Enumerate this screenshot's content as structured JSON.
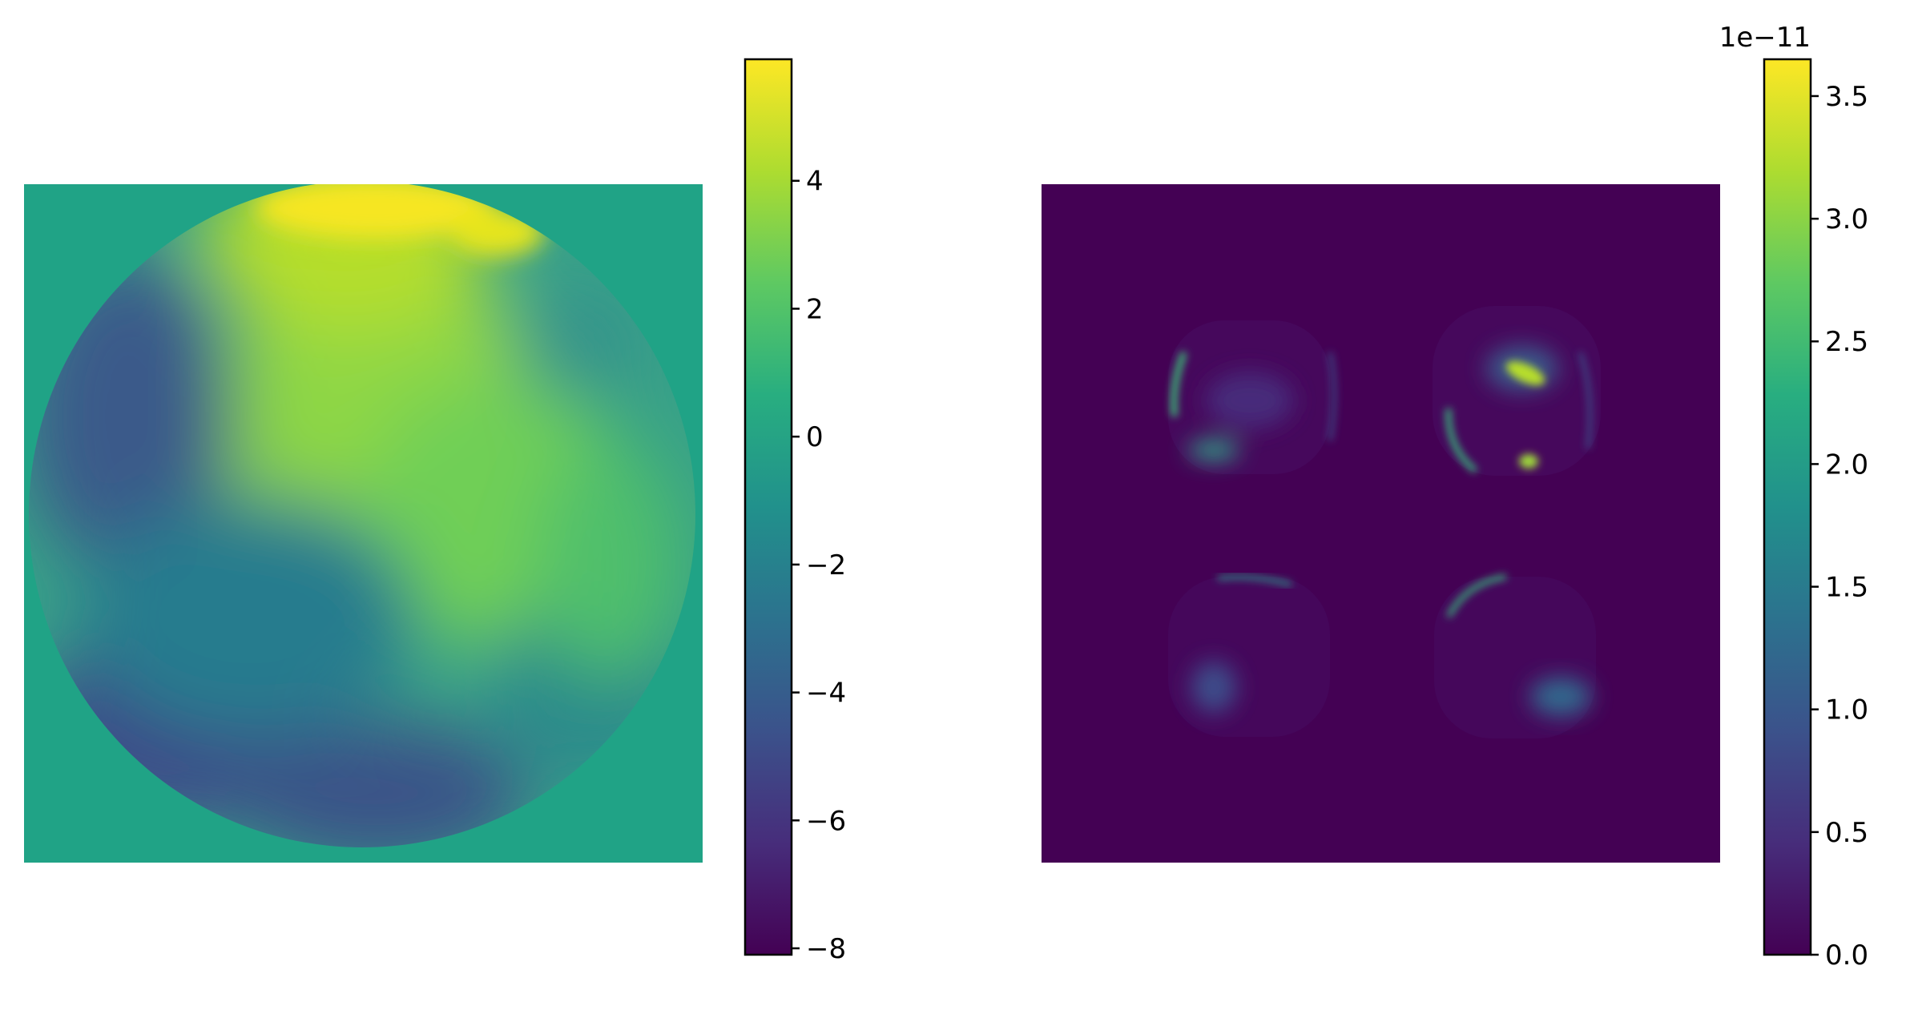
{
  "chart_data": [
    {
      "type": "heatmap",
      "title": "",
      "xlabel": "",
      "ylabel": "",
      "axes_visible": false,
      "colormap": "viridis",
      "colorbar": {
        "range": [
          -8.1,
          5.9
        ],
        "ticks": [
          -8,
          -6,
          -4,
          -2,
          0,
          2,
          4
        ],
        "tick_labels": [
          "−8",
          "−6",
          "−4",
          "−2",
          "0",
          "2",
          "4"
        ],
        "offset_text": ""
      },
      "content": "circular aperture map, constant background value ~0 outside the disk"
    },
    {
      "type": "heatmap",
      "title": "",
      "xlabel": "",
      "ylabel": "",
      "axes_visible": false,
      "colormap": "viridis",
      "colorbar": {
        "range": [
          0.0,
          3.65
        ],
        "ticks": [
          0.0,
          0.5,
          1.0,
          1.5,
          2.0,
          2.5,
          3.0,
          3.5
        ],
        "tick_labels": [
          "0.0",
          "0.5",
          "1.0",
          "1.5",
          "2.0",
          "2.5",
          "3.0",
          "3.5"
        ],
        "offset_text": "1e−11"
      },
      "content": "four rounded-square pupil regions, mostly near zero with bright edge features"
    }
  ]
}
